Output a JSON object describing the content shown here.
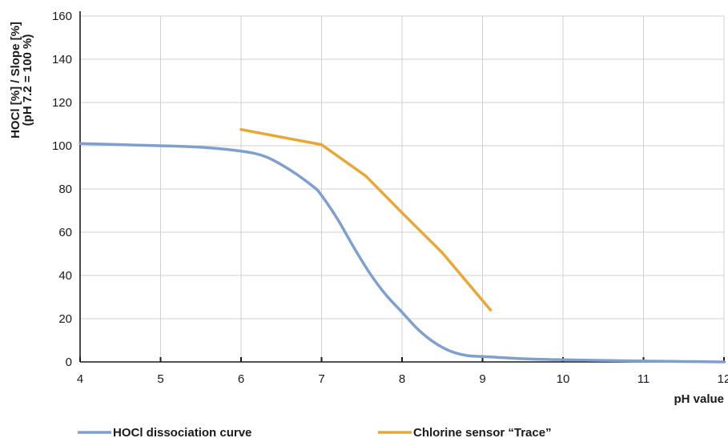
{
  "chart_data": {
    "type": "line",
    "title": "",
    "xlabel": "pH value",
    "ylabel_lines": [
      "HOCl [%]  / Slope [%]",
      "(pH 7.2 = 100 %)"
    ],
    "xlim": [
      4,
      12
    ],
    "ylim": [
      0,
      160
    ],
    "x_ticks": [
      4,
      5,
      6,
      7,
      8,
      9,
      10,
      11,
      12
    ],
    "y_ticks": [
      0,
      20,
      40,
      60,
      80,
      100,
      120,
      140,
      160
    ],
    "grid": true,
    "legend_position": "bottom",
    "series": [
      {
        "name": "HOCl dissociation curve",
        "color": "#7f9fcf",
        "x": [
          4,
          4.5,
          5,
          5.5,
          6,
          6.3,
          6.6,
          6.9,
          7,
          7.2,
          7.4,
          7.6,
          7.8,
          8,
          8.2,
          8.4,
          8.6,
          8.8,
          9,
          9.5,
          10,
          10.5,
          11,
          11.5,
          12
        ],
        "y": [
          101,
          100.5,
          100,
          99.3,
          97.5,
          95,
          89,
          81,
          77,
          66,
          53,
          41,
          31,
          23,
          15,
          9,
          5,
          3,
          2.5,
          1.5,
          1,
          0.7,
          0.4,
          0.2,
          0
        ]
      },
      {
        "name": "Chlorine sensor “Trace”",
        "color": "#e8a838",
        "x": [
          6,
          7,
          7.55,
          8,
          8.5,
          9.1
        ],
        "y": [
          107.5,
          100.5,
          86,
          69,
          50.5,
          24
        ]
      }
    ]
  }
}
